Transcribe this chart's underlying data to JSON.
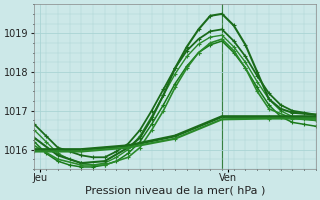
{
  "title": "Pression niveau de la mer( hPa )",
  "bg_color": "#cce8e8",
  "grid_color": "#aad4d4",
  "line_colors": [
    "#1a6b1a",
    "#1a7a1a",
    "#2a8a2a",
    "#1a6b1a",
    "#2a8a2a",
    "#3a9a3a"
  ],
  "yticks": [
    1016,
    1017,
    1018,
    1019
  ],
  "ylim": [
    1015.5,
    1019.75
  ],
  "xlim": [
    0,
    24
  ],
  "xtick_positions": [
    0.5,
    16.5
  ],
  "xtick_labels": [
    "Jeu",
    "Ven"
  ],
  "vline_x": 16,
  "series": [
    {
      "x": [
        0,
        1,
        2,
        3,
        4,
        5,
        6,
        7,
        8,
        9,
        10,
        11,
        12,
        13,
        14,
        15,
        16,
        17,
        18,
        19,
        20,
        21,
        22,
        23,
        24
      ],
      "y": [
        1016.65,
        1016.35,
        1016.05,
        1015.95,
        1015.85,
        1015.8,
        1015.8,
        1015.95,
        1016.15,
        1016.5,
        1017.0,
        1017.55,
        1018.1,
        1018.55,
        1018.85,
        1019.05,
        1019.1,
        1018.8,
        1018.4,
        1017.9,
        1017.45,
        1017.15,
        1017.0,
        1016.95,
        1016.9
      ],
      "color": "#1a6b1a",
      "lw": 1.3,
      "marker": "+",
      "ms": 3.5
    },
    {
      "x": [
        0,
        1,
        2,
        3,
        4,
        5,
        6,
        7,
        8,
        9,
        10,
        11,
        12,
        13,
        14,
        15,
        16,
        17,
        18,
        19,
        20,
        21,
        22,
        23,
        24
      ],
      "y": [
        1016.5,
        1016.2,
        1015.9,
        1015.75,
        1015.65,
        1015.6,
        1015.65,
        1015.8,
        1016.0,
        1016.35,
        1016.85,
        1017.4,
        1017.95,
        1018.4,
        1018.72,
        1018.9,
        1018.95,
        1018.65,
        1018.25,
        1017.75,
        1017.3,
        1017.0,
        1016.85,
        1016.8,
        1016.75
      ],
      "color": "#2a8a2a",
      "lw": 1.0,
      "marker": "+",
      "ms": 3.0
    },
    {
      "x": [
        0,
        1,
        2,
        3,
        4,
        5,
        6,
        7,
        8,
        9,
        10,
        11,
        12,
        13,
        14,
        15,
        16,
        17,
        18,
        19,
        20,
        21,
        22,
        23,
        24
      ],
      "y": [
        1016.2,
        1015.9,
        1015.7,
        1015.6,
        1015.55,
        1015.55,
        1015.6,
        1015.7,
        1015.9,
        1016.2,
        1016.65,
        1017.15,
        1017.7,
        1018.15,
        1018.5,
        1018.7,
        1018.8,
        1018.5,
        1018.1,
        1017.6,
        1017.15,
        1016.85,
        1016.7,
        1016.65,
        1016.6
      ],
      "color": "#1a7a1a",
      "lw": 1.1,
      "marker": "+",
      "ms": 3.0
    },
    {
      "x": [
        0,
        2,
        4,
        6,
        8,
        9,
        10,
        11,
        12,
        13,
        14,
        15,
        16,
        17,
        18,
        19,
        20,
        21,
        22,
        24
      ],
      "y": [
        1016.3,
        1015.85,
        1015.65,
        1015.7,
        1016.05,
        1016.3,
        1016.8,
        1017.4,
        1018.1,
        1018.65,
        1019.1,
        1019.45,
        1019.5,
        1019.2,
        1018.7,
        1018.0,
        1017.3,
        1017.05,
        1016.95,
        1016.9
      ],
      "color": "#1a6b1a",
      "lw": 1.5,
      "marker": "+",
      "ms": 3.5
    },
    {
      "x": [
        0,
        2,
        4,
        6,
        8,
        9,
        10,
        11,
        12,
        13,
        14,
        15,
        16,
        17,
        18,
        19,
        20,
        22,
        24
      ],
      "y": [
        1016.1,
        1015.75,
        1015.6,
        1015.6,
        1015.8,
        1016.05,
        1016.5,
        1017.0,
        1017.6,
        1018.1,
        1018.5,
        1018.75,
        1018.85,
        1018.55,
        1018.1,
        1017.5,
        1017.05,
        1016.8,
        1016.75
      ],
      "color": "#2a8a2a",
      "lw": 1.2,
      "marker": "+",
      "ms": 3.0
    },
    {
      "x": [
        0,
        4,
        8,
        12,
        16,
        20,
        24
      ],
      "y": [
        1016.0,
        1016.0,
        1016.1,
        1016.35,
        1016.85,
        1016.85,
        1016.85
      ],
      "color": "#1a6b1a",
      "lw": 2.0,
      "marker": "+",
      "ms": 3.5
    },
    {
      "x": [
        0,
        4,
        8,
        12,
        16,
        20,
        24
      ],
      "y": [
        1015.95,
        1015.95,
        1016.05,
        1016.28,
        1016.78,
        1016.8,
        1016.8
      ],
      "color": "#2a8a2a",
      "lw": 1.6,
      "marker": "+",
      "ms": 3.0
    }
  ]
}
